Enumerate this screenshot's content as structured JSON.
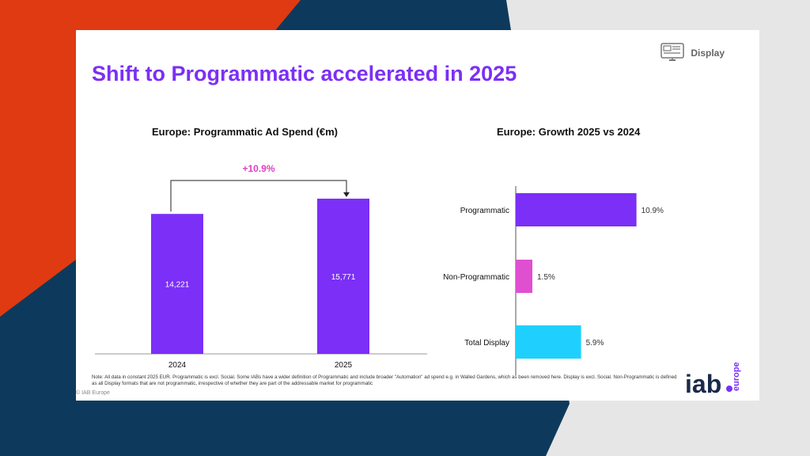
{
  "slide": {
    "title": "Shift to Programmatic accelerated in 2025",
    "badge_label": "Display",
    "note": "Note: All data in constant 2025 EUR. Programmatic is excl. Social. Some IABs have a wider definition of Programmatic and include broader \"Automation\" ad spend e.g. in Walled Gardens, which as been removed here. Display is excl. Social. Non-Programmatic is defined as all Display formats that are not programmatic, irrespective of whether they are part of the addressable market for programmatic",
    "copyright": "© IAB Europe",
    "logo_text": "iab",
    "logo_subtext": "europe"
  },
  "colors": {
    "purple": "#7b2ff7",
    "magenta": "#e04fd0",
    "cyan": "#1fd0ff",
    "growth_label": "#e040c0"
  },
  "chart_data": [
    {
      "type": "bar",
      "title": "Europe: Programmatic Ad Spend (€m)",
      "categories": [
        "2024",
        "2025"
      ],
      "values": [
        14221,
        15771
      ],
      "value_labels": [
        "14,221",
        "15,771"
      ],
      "growth_label": "+10.9%",
      "ylim": [
        0,
        18500
      ]
    },
    {
      "type": "bar",
      "orientation": "horizontal",
      "title": "Europe: Growth 2025 vs 2024",
      "categories": [
        "Programmatic",
        "Non-Programmatic",
        "Total Display"
      ],
      "values": [
        10.9,
        1.5,
        5.9
      ],
      "value_labels": [
        "10.9%",
        "1.5%",
        "5.9%"
      ],
      "xlim": [
        0,
        14
      ]
    }
  ]
}
